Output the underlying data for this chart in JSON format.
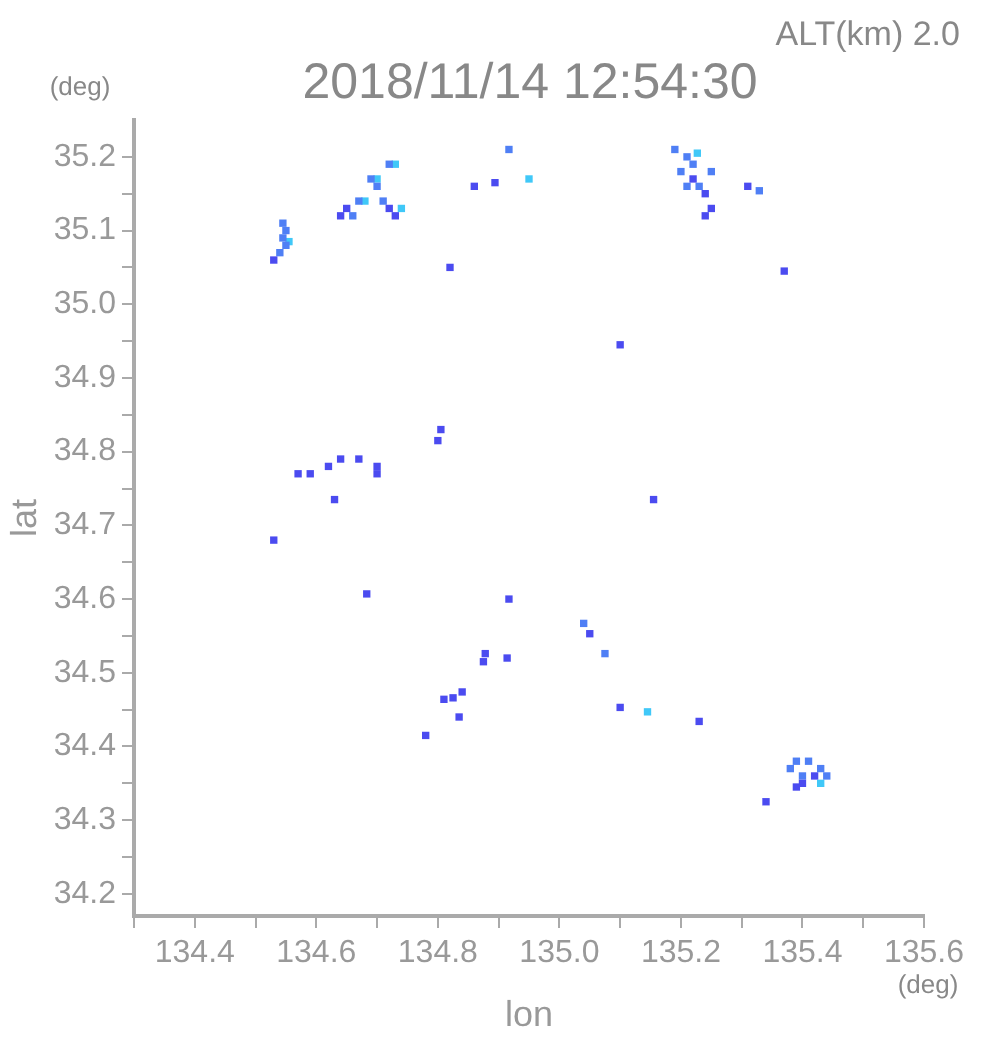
{
  "chart_data": {
    "type": "scatter",
    "title": "2018/11/14 12:54:30",
    "xlabel": "lon",
    "ylabel": "lat",
    "annotations": [
      "ALT(km) 2.0",
      "(deg)",
      "(deg)"
    ],
    "xlim": [
      134.3,
      135.6
    ],
    "ylim": [
      34.17,
      35.25
    ],
    "xticks": [
      {
        "value": 134.3,
        "label": null
      },
      134.4,
      {
        "value": 134.5,
        "label": null
      },
      134.6,
      {
        "value": 134.7,
        "label": null
      },
      134.8,
      {
        "value": 134.9,
        "label": null
      },
      {
        "value": 135,
        "label": "135.0"
      },
      {
        "value": 135.1,
        "label": null
      },
      135.2,
      {
        "value": 135.3,
        "label": null
      },
      135.4,
      {
        "value": 135.5,
        "label": null
      },
      135.6
    ],
    "yticks": [
      34.2,
      {
        "value": 34.25,
        "label": null
      },
      34.3,
      {
        "value": 34.35,
        "label": null
      },
      34.4,
      {
        "value": 34.45,
        "label": null
      },
      34.5,
      {
        "value": 34.55,
        "label": null
      },
      34.6,
      {
        "value": 34.65,
        "label": null
      },
      34.7,
      {
        "value": 34.75,
        "label": null
      },
      34.8,
      {
        "value": 34.85,
        "label": null
      },
      34.9,
      {
        "value": 34.95,
        "label": null
      },
      {
        "value": 35,
        "label": "35.0"
      },
      {
        "value": 35.05,
        "label": null
      },
      35.1,
      {
        "value": 35.15,
        "label": null
      },
      35.2
    ],
    "grid": false,
    "legend": false,
    "marker": "square",
    "series": [
      {
        "color": "#4b4bf0",
        "x": [
          134.53,
          134.64,
          134.65,
          134.72,
          134.73,
          134.82,
          134.86,
          134.894,
          135.22,
          135.24,
          135.25,
          135.24,
          135.31,
          135.37,
          135.1,
          135.155,
          134.57,
          134.59,
          134.62,
          134.64,
          134.67,
          134.7,
          134.7,
          134.63,
          134.805,
          134.8,
          134.53,
          134.683,
          134.917,
          135.05,
          134.878,
          134.875,
          134.914,
          134.84,
          134.825,
          134.81,
          134.835,
          134.78,
          135.1,
          135.23,
          135.4,
          135.42,
          135.39,
          135.34
        ],
        "values": [
          35.06,
          35.12,
          35.13,
          35.13,
          35.12,
          35.05,
          35.16,
          35.165,
          35.17,
          35.15,
          35.13,
          35.12,
          35.16,
          35.045,
          34.945,
          34.735,
          34.77,
          34.77,
          34.78,
          34.79,
          34.79,
          34.77,
          34.78,
          34.735,
          34.83,
          34.815,
          34.68,
          34.607,
          34.6,
          34.553,
          34.526,
          34.515,
          34.52,
          34.474,
          34.466,
          34.464,
          34.44,
          34.415,
          34.453,
          34.434,
          34.35,
          34.36,
          34.345,
          34.325
        ]
      },
      {
        "color": "#4f7ff5",
        "x": [
          134.545,
          134.55,
          134.545,
          134.55,
          134.54,
          134.69,
          134.7,
          134.67,
          134.66,
          134.71,
          134.72,
          134.917,
          135.19,
          135.21,
          135.22,
          135.2,
          135.23,
          135.25,
          135.21,
          135.329,
          135.04,
          135.075,
          135.39,
          135.41,
          135.43,
          135.4,
          135.38,
          135.44
        ],
        "values": [
          35.11,
          35.1,
          35.09,
          35.08,
          35.07,
          35.17,
          35.16,
          35.14,
          35.12,
          35.14,
          35.19,
          35.21,
          35.21,
          35.2,
          35.19,
          35.18,
          35.16,
          35.18,
          35.16,
          35.154,
          34.567,
          34.526,
          34.38,
          34.38,
          34.37,
          34.36,
          34.37,
          34.36
        ]
      },
      {
        "color": "#40c8f8",
        "x": [
          134.555,
          134.7,
          134.68,
          134.73,
          134.74,
          134.95,
          135.227,
          135.145,
          135.43
        ],
        "values": [
          35.085,
          35.17,
          35.14,
          35.19,
          35.13,
          35.17,
          35.205,
          34.447,
          34.35
        ]
      }
    ]
  }
}
